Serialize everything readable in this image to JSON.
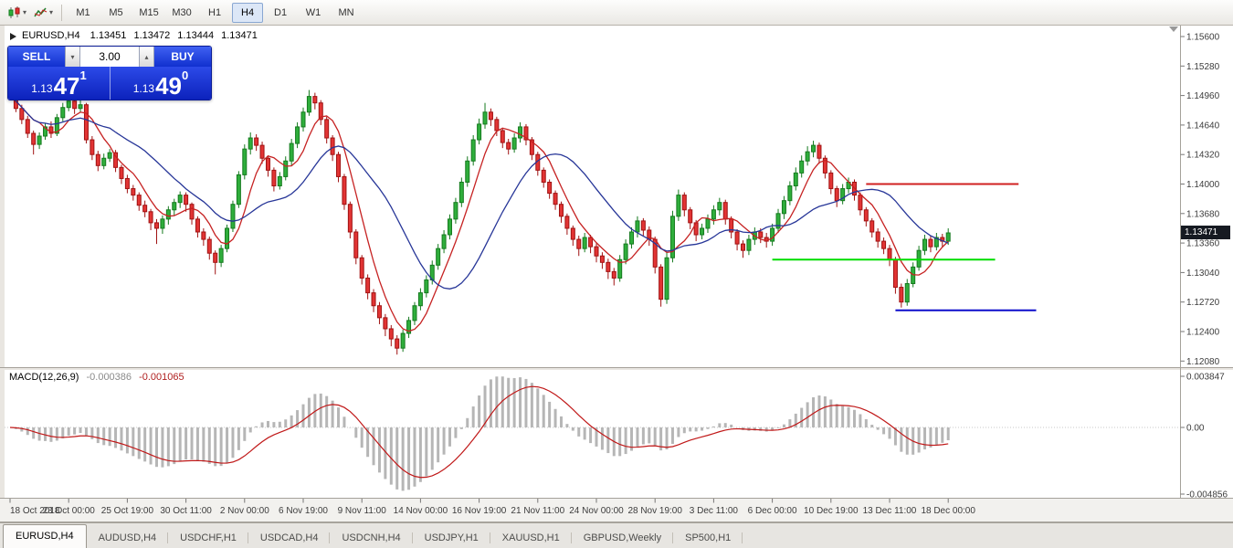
{
  "toolbar": {
    "timeframes": [
      "M1",
      "M5",
      "M15",
      "M30",
      "H1",
      "H4",
      "D1",
      "W1",
      "MN"
    ],
    "active_timeframe": "H4"
  },
  "chart": {
    "symbol_title": "EURUSD,H4",
    "open": "1.13451",
    "high": "1.13472",
    "low": "1.13444",
    "close": "1.13471",
    "current_price": "1.13471"
  },
  "trade_panel": {
    "sell_label": "SELL",
    "buy_label": "BUY",
    "volume": "3.00",
    "sell_price": {
      "prefix": "1.13",
      "pips": "47",
      "point": "1"
    },
    "buy_price": {
      "prefix": "1.13",
      "pips": "49",
      "point": "0"
    }
  },
  "macd": {
    "label": "MACD(12,26,9)",
    "main_value": "-0.000386",
    "signal_value": "-0.001065"
  },
  "tabs": {
    "items": [
      {
        "label": "EURUSD,H4",
        "active": true
      },
      {
        "label": "AUDUSD,H4",
        "active": false
      },
      {
        "label": "USDCHF,H1",
        "active": false
      },
      {
        "label": "USDCAD,H4",
        "active": false
      },
      {
        "label": "USDCNH,H4",
        "active": false
      },
      {
        "label": "USDJPY,H1",
        "active": false
      },
      {
        "label": "XAUUSD,H1",
        "active": false
      },
      {
        "label": "GBPUSD,Weekly",
        "active": false
      },
      {
        "label": "SP500,H1",
        "active": false
      }
    ]
  },
  "chart_data": {
    "type": "candlestick",
    "symbol": "EURUSD",
    "timeframe": "H4",
    "price_axis": {
      "max": 1.156,
      "min": 1.1208,
      "step": 0.0032,
      "labels": [
        "1.15600",
        "1.15280",
        "1.14960",
        "1.14640",
        "1.14320",
        "1.14000",
        "1.13680",
        "1.13360",
        "1.13040",
        "1.12720",
        "1.12400",
        "1.12080"
      ]
    },
    "time_axis_labels": [
      "18 Oct 2018",
      "23 Oct 00:00",
      "25 Oct 19:00",
      "30 Oct 11:00",
      "2 Nov 00:00",
      "6 Nov 19:00",
      "9 Nov 11:00",
      "14 Nov 00:00",
      "16 Nov 19:00",
      "21 Nov 11:00",
      "24 Nov 00:00",
      "28 Nov 19:00",
      "3 Dec 11:00",
      "6 Dec 00:00",
      "10 Dec 19:00",
      "13 Dec 11:00",
      "18 Dec 00:00"
    ],
    "colors": {
      "up": "#2fae3c",
      "up_border": "#157a1e",
      "down": "#e23434",
      "down_border": "#a01212"
    },
    "moving_averages": [
      {
        "name": "ma-fast-line",
        "period": 6,
        "color": "#c62222"
      },
      {
        "name": "ma-slow-line",
        "period": 18,
        "color": "#273698"
      }
    ],
    "horizontal_lines": [
      {
        "name": "resistance-trendline",
        "price": 1.14,
        "color": "#d02020",
        "from_index": 146,
        "to_index": 172,
        "width": 2
      },
      {
        "name": "support-trendline",
        "price": 1.1318,
        "color": "#00dd00",
        "from_index": 130,
        "to_index": 168,
        "width": 2
      },
      {
        "name": "lower-support-trendline",
        "price": 1.1263,
        "color": "#0d0dcc",
        "from_index": 151,
        "to_index": 175,
        "width": 2
      }
    ],
    "macd": {
      "fast": 12,
      "slow": 26,
      "signal_period": 9,
      "axis_labels": [
        "0.003847",
        "0.00",
        "-0.004856"
      ],
      "histogram_color": "#b6b6b6",
      "signal_color": "#c01818"
    },
    "candles_ohlc": [
      [
        1.1508,
        1.1512,
        1.1494,
        1.1498
      ],
      [
        1.1498,
        1.1501,
        1.1478,
        1.1482
      ],
      [
        1.1482,
        1.1486,
        1.1465,
        1.147
      ],
      [
        1.147,
        1.1474,
        1.145,
        1.1455
      ],
      [
        1.1455,
        1.1458,
        1.1432,
        1.1443
      ],
      [
        1.1443,
        1.1456,
        1.1438,
        1.1452
      ],
      [
        1.1452,
        1.1466,
        1.1448,
        1.1462
      ],
      [
        1.1462,
        1.1468,
        1.145,
        1.1455
      ],
      [
        1.1455,
        1.1476,
        1.1452,
        1.1472
      ],
      [
        1.1472,
        1.1488,
        1.1468,
        1.1483
      ],
      [
        1.1483,
        1.15,
        1.1479,
        1.149
      ],
      [
        1.149,
        1.1494,
        1.1476,
        1.1482
      ],
      [
        1.1482,
        1.1492,
        1.1478,
        1.1486
      ],
      [
        1.1486,
        1.1488,
        1.1444,
        1.1448
      ],
      [
        1.1448,
        1.1452,
        1.1426,
        1.1432
      ],
      [
        1.1432,
        1.1436,
        1.1414,
        1.142
      ],
      [
        1.142,
        1.1433,
        1.1416,
        1.1428
      ],
      [
        1.1428,
        1.1438,
        1.1424,
        1.1434
      ],
      [
        1.1434,
        1.1437,
        1.1413,
        1.1418
      ],
      [
        1.1418,
        1.1421,
        1.14,
        1.1406
      ],
      [
        1.1406,
        1.141,
        1.139,
        1.1395
      ],
      [
        1.1395,
        1.1399,
        1.1382,
        1.1388
      ],
      [
        1.1388,
        1.1391,
        1.1371,
        1.1377
      ],
      [
        1.1377,
        1.1382,
        1.1364,
        1.137
      ],
      [
        1.137,
        1.1373,
        1.135,
        1.1358
      ],
      [
        1.1358,
        1.1362,
        1.1335,
        1.1352
      ],
      [
        1.1352,
        1.1366,
        1.1346,
        1.1362
      ],
      [
        1.1362,
        1.1376,
        1.1356,
        1.1372
      ],
      [
        1.1372,
        1.1384,
        1.1366,
        1.138
      ],
      [
        1.138,
        1.1392,
        1.1374,
        1.1388
      ],
      [
        1.1388,
        1.1391,
        1.137,
        1.1378
      ],
      [
        1.1378,
        1.138,
        1.1356,
        1.1362
      ],
      [
        1.1362,
        1.1365,
        1.1342,
        1.1348
      ],
      [
        1.1348,
        1.1352,
        1.1333,
        1.134
      ],
      [
        1.134,
        1.1343,
        1.1318,
        1.1325
      ],
      [
        1.1325,
        1.1328,
        1.1302,
        1.1315
      ],
      [
        1.1315,
        1.1334,
        1.131,
        1.133
      ],
      [
        1.133,
        1.1356,
        1.1326,
        1.1352
      ],
      [
        1.1352,
        1.1382,
        1.1348,
        1.1378
      ],
      [
        1.1378,
        1.1414,
        1.1374,
        1.141
      ],
      [
        1.141,
        1.1443,
        1.1405,
        1.1438
      ],
      [
        1.1438,
        1.1456,
        1.1432,
        1.145
      ],
      [
        1.145,
        1.1454,
        1.1436,
        1.1442
      ],
      [
        1.1442,
        1.1446,
        1.1422,
        1.1428
      ],
      [
        1.1428,
        1.1431,
        1.1408,
        1.1415
      ],
      [
        1.1415,
        1.1418,
        1.1392,
        1.1398
      ],
      [
        1.1398,
        1.1413,
        1.1394,
        1.1408
      ],
      [
        1.1408,
        1.143,
        1.1404,
        1.1425
      ],
      [
        1.1425,
        1.1449,
        1.142,
        1.1444
      ],
      [
        1.1444,
        1.1467,
        1.1439,
        1.1462
      ],
      [
        1.1462,
        1.1483,
        1.1457,
        1.1478
      ],
      [
        1.1478,
        1.1502,
        1.1474,
        1.1495
      ],
      [
        1.1495,
        1.1499,
        1.1481,
        1.1488
      ],
      [
        1.1488,
        1.1491,
        1.1464,
        1.147
      ],
      [
        1.147,
        1.1473,
        1.1444,
        1.145
      ],
      [
        1.145,
        1.1453,
        1.1425,
        1.1432
      ],
      [
        1.1432,
        1.1435,
        1.1402,
        1.1408
      ],
      [
        1.1408,
        1.1411,
        1.1372,
        1.1378
      ],
      [
        1.1378,
        1.1381,
        1.1341,
        1.1348
      ],
      [
        1.1348,
        1.1351,
        1.1313,
        1.132
      ],
      [
        1.132,
        1.1323,
        1.1291,
        1.1298
      ],
      [
        1.1298,
        1.1302,
        1.1275,
        1.1282
      ],
      [
        1.1282,
        1.1286,
        1.1261,
        1.1268
      ],
      [
        1.1268,
        1.1272,
        1.1248,
        1.1255
      ],
      [
        1.1255,
        1.1259,
        1.1235,
        1.1243
      ],
      [
        1.1243,
        1.1247,
        1.1224,
        1.1232
      ],
      [
        1.1232,
        1.1236,
        1.1215,
        1.1222
      ],
      [
        1.1222,
        1.1242,
        1.1218,
        1.1238
      ],
      [
        1.1238,
        1.1256,
        1.1233,
        1.1252
      ],
      [
        1.1252,
        1.1272,
        1.1247,
        1.1268
      ],
      [
        1.1268,
        1.1287,
        1.1263,
        1.1282
      ],
      [
        1.1282,
        1.1301,
        1.1277,
        1.1296
      ],
      [
        1.1296,
        1.1317,
        1.1291,
        1.1312
      ],
      [
        1.1312,
        1.1335,
        1.1307,
        1.133
      ],
      [
        1.133,
        1.135,
        1.1325,
        1.1345
      ],
      [
        1.1345,
        1.1367,
        1.134,
        1.1362
      ],
      [
        1.1362,
        1.1385,
        1.1357,
        1.138
      ],
      [
        1.138,
        1.1407,
        1.1375,
        1.1402
      ],
      [
        1.1402,
        1.143,
        1.1397,
        1.1425
      ],
      [
        1.1425,
        1.1453,
        1.142,
        1.1448
      ],
      [
        1.1448,
        1.1471,
        1.1443,
        1.1465
      ],
      [
        1.1465,
        1.1488,
        1.146,
        1.1478
      ],
      [
        1.1478,
        1.1482,
        1.1463,
        1.147
      ],
      [
        1.147,
        1.1473,
        1.1452,
        1.1458
      ],
      [
        1.1458,
        1.1461,
        1.1439,
        1.1445
      ],
      [
        1.1445,
        1.1449,
        1.1432,
        1.1438
      ],
      [
        1.1438,
        1.1455,
        1.1434,
        1.145
      ],
      [
        1.145,
        1.1467,
        1.1445,
        1.1462
      ],
      [
        1.1462,
        1.1465,
        1.1442,
        1.1448
      ],
      [
        1.1448,
        1.1451,
        1.1426,
        1.1432
      ],
      [
        1.1432,
        1.1435,
        1.1409,
        1.1415
      ],
      [
        1.1415,
        1.1418,
        1.1396,
        1.1402
      ],
      [
        1.1402,
        1.1405,
        1.1384,
        1.139
      ],
      [
        1.139,
        1.1393,
        1.1372,
        1.1378
      ],
      [
        1.1378,
        1.1381,
        1.1358,
        1.1365
      ],
      [
        1.1365,
        1.1368,
        1.1345,
        1.1352
      ],
      [
        1.1352,
        1.1355,
        1.1333,
        1.134
      ],
      [
        1.134,
        1.1344,
        1.1322,
        1.133
      ],
      [
        1.133,
        1.1347,
        1.1326,
        1.1342
      ],
      [
        1.1342,
        1.1345,
        1.1325,
        1.1332
      ],
      [
        1.1332,
        1.1336,
        1.1315,
        1.1322
      ],
      [
        1.1322,
        1.1326,
        1.1308,
        1.1315
      ],
      [
        1.1315,
        1.1319,
        1.1297,
        1.1305
      ],
      [
        1.1305,
        1.1309,
        1.129,
        1.1298
      ],
      [
        1.1298,
        1.1323,
        1.1294,
        1.1318
      ],
      [
        1.1318,
        1.134,
        1.1313,
        1.1335
      ],
      [
        1.1335,
        1.1353,
        1.133,
        1.1348
      ],
      [
        1.1348,
        1.1365,
        1.1342,
        1.136
      ],
      [
        1.136,
        1.1363,
        1.1344,
        1.135
      ],
      [
        1.135,
        1.1354,
        1.1333,
        1.134
      ],
      [
        1.134,
        1.1343,
        1.1303,
        1.131
      ],
      [
        1.131,
        1.1313,
        1.1267,
        1.1275
      ],
      [
        1.1275,
        1.1326,
        1.127,
        1.132
      ],
      [
        1.132,
        1.1371,
        1.1315,
        1.1365
      ],
      [
        1.1365,
        1.1394,
        1.136,
        1.1388
      ],
      [
        1.1388,
        1.1391,
        1.1365,
        1.1372
      ],
      [
        1.1372,
        1.1375,
        1.1351,
        1.1358
      ],
      [
        1.1358,
        1.1361,
        1.1338,
        1.1345
      ],
      [
        1.1345,
        1.1357,
        1.134,
        1.1352
      ],
      [
        1.1352,
        1.1367,
        1.1347,
        1.1362
      ],
      [
        1.1362,
        1.1377,
        1.1356,
        1.1372
      ],
      [
        1.1372,
        1.1385,
        1.1366,
        1.138
      ],
      [
        1.138,
        1.1383,
        1.1356,
        1.1362
      ],
      [
        1.1362,
        1.1365,
        1.1341,
        1.1348
      ],
      [
        1.1348,
        1.1351,
        1.1328,
        1.1335
      ],
      [
        1.1335,
        1.1339,
        1.132,
        1.1328
      ],
      [
        1.1328,
        1.1345,
        1.1323,
        1.134
      ],
      [
        1.134,
        1.1353,
        1.1334,
        1.1348
      ],
      [
        1.1348,
        1.1352,
        1.1336,
        1.1342
      ],
      [
        1.1342,
        1.1347,
        1.1331,
        1.1338
      ],
      [
        1.1338,
        1.1357,
        1.1333,
        1.1352
      ],
      [
        1.1352,
        1.1373,
        1.1347,
        1.1368
      ],
      [
        1.1368,
        1.1387,
        1.1362,
        1.1382
      ],
      [
        1.1382,
        1.1403,
        1.1377,
        1.1398
      ],
      [
        1.1398,
        1.1418,
        1.1393,
        1.1412
      ],
      [
        1.1412,
        1.1431,
        1.1407,
        1.1425
      ],
      [
        1.1425,
        1.1441,
        1.142,
        1.1435
      ],
      [
        1.1435,
        1.1447,
        1.1429,
        1.1442
      ],
      [
        1.1442,
        1.1445,
        1.1422,
        1.1428
      ],
      [
        1.1428,
        1.1431,
        1.1406,
        1.1412
      ],
      [
        1.1412,
        1.1415,
        1.1389,
        1.1395
      ],
      [
        1.1395,
        1.1398,
        1.1375,
        1.1382
      ],
      [
        1.1382,
        1.14,
        1.1378,
        1.1395
      ],
      [
        1.1395,
        1.1407,
        1.139,
        1.1402
      ],
      [
        1.1402,
        1.1405,
        1.1382,
        1.1388
      ],
      [
        1.1388,
        1.1391,
        1.1366,
        1.1372
      ],
      [
        1.1372,
        1.1375,
        1.1354,
        1.136
      ],
      [
        1.136,
        1.1363,
        1.1342,
        1.1348
      ],
      [
        1.1348,
        1.1352,
        1.1331,
        1.1338
      ],
      [
        1.1338,
        1.1342,
        1.1324,
        1.133
      ],
      [
        1.133,
        1.1334,
        1.1311,
        1.1318
      ],
      [
        1.1318,
        1.1321,
        1.1281,
        1.1288
      ],
      [
        1.1288,
        1.1292,
        1.1266,
        1.1272
      ],
      [
        1.1272,
        1.1297,
        1.1268,
        1.1292
      ],
      [
        1.1292,
        1.1315,
        1.1288,
        1.131
      ],
      [
        1.131,
        1.1333,
        1.1306,
        1.1328
      ],
      [
        1.1328,
        1.1345,
        1.1323,
        1.134
      ],
      [
        1.134,
        1.1344,
        1.1326,
        1.1332
      ],
      [
        1.1332,
        1.1347,
        1.1328,
        1.1342
      ],
      [
        1.1342,
        1.1346,
        1.1332,
        1.1338
      ],
      [
        1.1338,
        1.1352,
        1.1334,
        1.1347
      ]
    ]
  }
}
